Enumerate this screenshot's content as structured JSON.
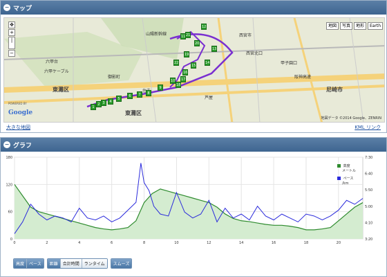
{
  "map_panel": {
    "title": "マップ",
    "collapse_icon": "minus-icon",
    "map_types": [
      "地図",
      "写真",
      "地形",
      "Earth"
    ],
    "bigger_map_link": "大きな地図",
    "kml_link": "KML リンク",
    "powered_by": "POWERED BY",
    "google_logo": "Google",
    "copyright": "地図データ ©2014 Google、ZENRIN",
    "labels": {
      "higashinada": "東灘区",
      "amagasaki": "尼崎市",
      "nada": "灘区",
      "rokkodai": "六甲台",
      "mikagecho": "御影町",
      "sumiyoshi": "住吉",
      "sanyo_shinkansen": "山陽新幹線",
      "nishinomiya": "西宮市",
      "ashiya": "芦屋",
      "koshien": "甲子園口",
      "nishinomiya_hanshin": "阪神高速",
      "kitaguchi": "西宮北口",
      "rokko_cable": "六甲ケーブル"
    },
    "markers": [
      "1",
      "2",
      "3",
      "4",
      "5",
      "6",
      "7",
      "8",
      "9",
      "10",
      "11",
      "12",
      "13",
      "14",
      "15",
      "16",
      "17",
      "18",
      "19",
      "20",
      "21",
      "22"
    ]
  },
  "graph_panel": {
    "title": "グラフ",
    "collapse_icon": "minus-icon",
    "legend": {
      "altitude_label": "高度",
      "altitude_unit": "メートル",
      "pace_label": "ペース",
      "pace_unit": "/km",
      "altitude_color": "#2e8b2e",
      "pace_color": "#2b2bdc"
    },
    "controls": {
      "group1": [
        "高度",
        "ペース"
      ],
      "group2": [
        "距離",
        "合計時間",
        "ランタイム"
      ],
      "group3": [
        "スムーズ"
      ]
    }
  },
  "chart_data": {
    "type": "line",
    "title": "",
    "xlabel": "",
    "ylabel": "",
    "x_ticks": [
      "0",
      "2",
      "4",
      "6",
      "8",
      "10",
      "12",
      "14",
      "16",
      "18",
      "20"
    ],
    "y_left_ticks": [
      "0",
      "60",
      "120",
      "180"
    ],
    "y_right_ticks": [
      "3:20",
      "4:10",
      "5:00",
      "5:50",
      "6:40",
      "7:30"
    ],
    "xlim": [
      0,
      21.5
    ],
    "y_left_lim": [
      0,
      180
    ],
    "grid": true,
    "legend_position": "top-right",
    "series": [
      {
        "name": "高度",
        "axis": "left",
        "x": [
          0,
          0.5,
          1,
          1.5,
          2,
          2.5,
          3,
          3.5,
          4,
          4.5,
          5,
          5.5,
          6,
          6.5,
          7,
          7.5,
          8,
          8.5,
          9,
          9.5,
          10,
          10.5,
          11,
          11.5,
          12,
          12.5,
          13,
          13.5,
          14,
          14.5,
          15,
          15.5,
          16,
          16.5,
          17,
          17.5,
          18,
          18.5,
          19,
          19.5,
          20,
          20.5,
          21,
          21.5
        ],
        "values": [
          120,
          95,
          70,
          60,
          55,
          50,
          45,
          40,
          35,
          30,
          25,
          22,
          20,
          22,
          25,
          40,
          80,
          100,
          110,
          105,
          100,
          95,
          90,
          85,
          80,
          70,
          55,
          45,
          40,
          38,
          35,
          32,
          30,
          30,
          28,
          25,
          20,
          20,
          22,
          25,
          40,
          55,
          70,
          80
        ]
      },
      {
        "name": "ペース",
        "axis": "right",
        "x": [
          0,
          0.5,
          1,
          1.5,
          2,
          2.5,
          3,
          3.5,
          4,
          4.5,
          5,
          5.5,
          6,
          6.5,
          7,
          7.5,
          7.8,
          8,
          8.3,
          8.6,
          9,
          9.5,
          10,
          10.5,
          11,
          11.5,
          12,
          12.5,
          13,
          13.5,
          14,
          14.5,
          15,
          15.5,
          16,
          16.5,
          17,
          17.5,
          18,
          18.5,
          19,
          19.5,
          20,
          20.5,
          21,
          21.5
        ],
        "values": [
          3.6,
          4.2,
          5.1,
          4.6,
          4.3,
          4.5,
          4.4,
          4.2,
          4.9,
          4.4,
          4.3,
          4.5,
          4.2,
          4.4,
          4.8,
          5.2,
          7.2,
          6.2,
          5.8,
          5.0,
          4.6,
          4.5,
          5.7,
          4.7,
          4.4,
          4.6,
          5.3,
          4.2,
          4.9,
          4.4,
          4.6,
          4.3,
          5.0,
          4.5,
          4.3,
          4.6,
          4.4,
          4.2,
          4.6,
          4.5,
          4.3,
          4.5,
          4.8,
          5.3,
          5.1,
          5.4
        ]
      }
    ]
  }
}
